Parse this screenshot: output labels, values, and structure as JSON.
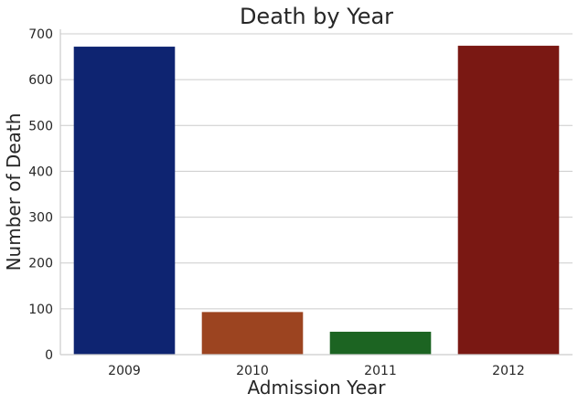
{
  "chart_data": {
    "type": "bar",
    "title": "Death by Year",
    "xlabel": "Admission Year",
    "ylabel": "Number of Death",
    "categories": [
      "2009",
      "2010",
      "2011",
      "2012"
    ],
    "values": [
      672,
      93,
      50,
      674
    ],
    "colors": [
      "#0e2471",
      "#9c4420",
      "#1c6422",
      "#7a1813"
    ],
    "ylim": [
      0,
      710
    ],
    "yticks": [
      0,
      100,
      200,
      300,
      400,
      500,
      600,
      700
    ],
    "grid": "horizontal",
    "legend": "none"
  }
}
